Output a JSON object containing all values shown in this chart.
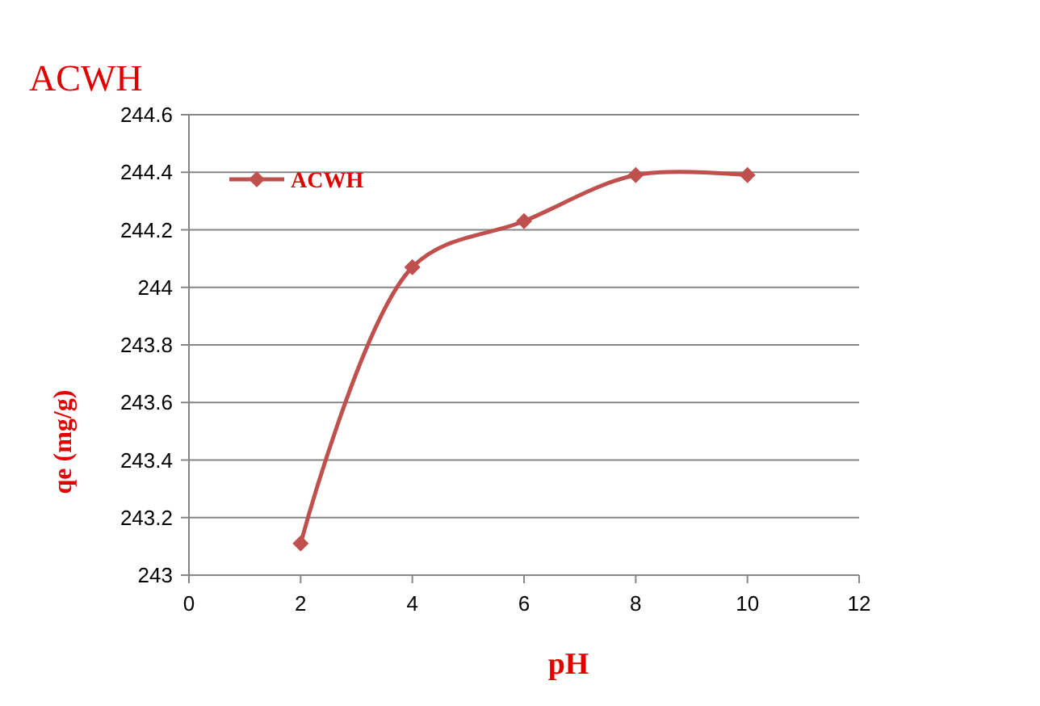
{
  "chart_data": {
    "type": "line",
    "title": "ACWH",
    "xlabel": "pH",
    "ylabel": "qe (mg/g)",
    "x": [
      2,
      4,
      6,
      8,
      10
    ],
    "series": [
      {
        "name": "ACWH",
        "color": "#c0504d",
        "values": [
          243.11,
          244.07,
          244.23,
          244.39,
          244.39
        ]
      }
    ],
    "xlim": [
      0,
      12
    ],
    "xticks": [
      0,
      2,
      4,
      6,
      8,
      10,
      12
    ],
    "ylim": [
      243,
      244.6
    ],
    "yticks": [
      243,
      243.2,
      243.4,
      243.6,
      243.8,
      244,
      244.2,
      244.4,
      244.6
    ],
    "grid": "y",
    "legend": "top left",
    "marker": "diamond",
    "line_style": "solid"
  }
}
